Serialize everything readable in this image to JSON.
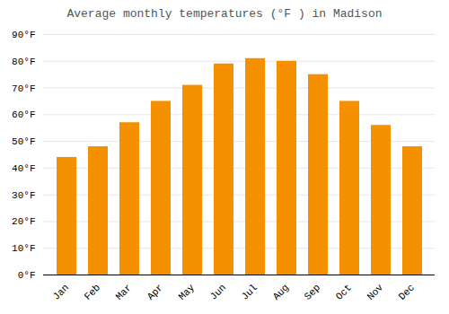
{
  "chart_data": {
    "type": "bar",
    "title": "Average monthly temperatures (°F ) in Madison",
    "categories": [
      "Jan",
      "Feb",
      "Mar",
      "Apr",
      "May",
      "Jun",
      "Jul",
      "Aug",
      "Sep",
      "Oct",
      "Nov",
      "Dec"
    ],
    "values": [
      44,
      48,
      57,
      65,
      71,
      79,
      81,
      80,
      75,
      65,
      56,
      48
    ],
    "color": "#F59000",
    "ylim": [
      0,
      90
    ],
    "yticks": [
      {
        "value": 0,
        "label": "0°F"
      },
      {
        "value": 10,
        "label": "10°F"
      },
      {
        "value": 20,
        "label": "20°F"
      },
      {
        "value": 30,
        "label": "30°F"
      },
      {
        "value": 40,
        "label": "40°F"
      },
      {
        "value": 50,
        "label": "50°F"
      },
      {
        "value": 60,
        "label": "60°F"
      },
      {
        "value": 70,
        "label": "70°F"
      },
      {
        "value": 80,
        "label": "80°F"
      },
      {
        "value": 90,
        "label": "90°F"
      }
    ],
    "grid": true
  }
}
